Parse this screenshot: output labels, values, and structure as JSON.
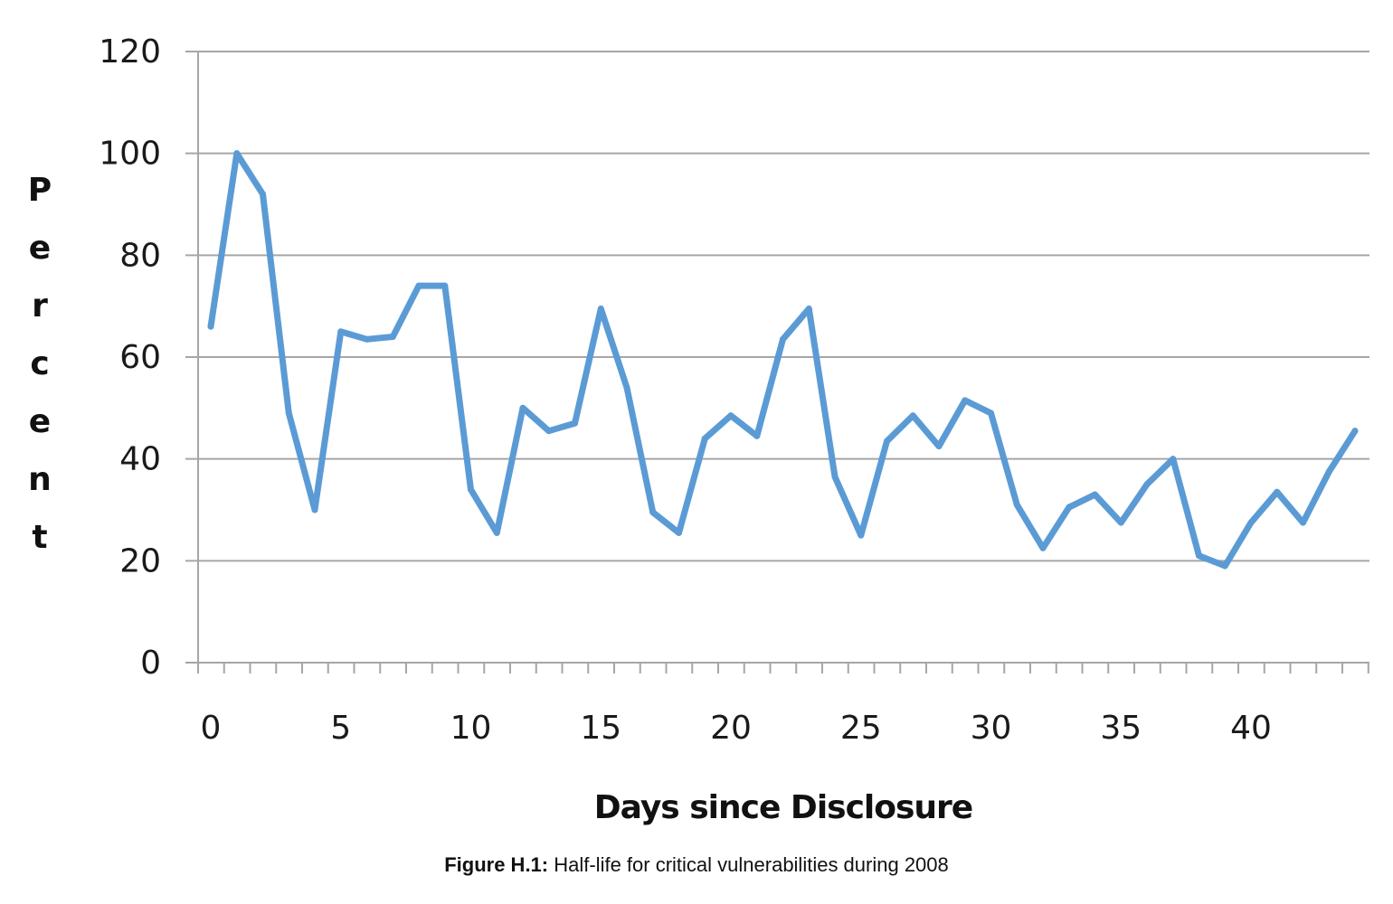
{
  "colors": {
    "line": "#5b9bd5",
    "grid": "#a6a6a6",
    "axis": "#a6a6a6"
  },
  "chart_data": {
    "type": "line",
    "xlabel": "Days since Disclosure",
    "ylabel": "Percent",
    "ylim": [
      0,
      120
    ],
    "yticks": [
      0,
      20,
      40,
      60,
      80,
      100,
      120
    ],
    "xlim": [
      0,
      44
    ],
    "xticklabels": [
      0,
      5,
      10,
      15,
      20,
      25,
      30,
      35,
      40
    ],
    "grid": "horizontal",
    "legend": "none",
    "x": [
      0,
      1,
      2,
      3,
      4,
      5,
      6,
      7,
      8,
      9,
      10,
      11,
      12,
      13,
      14,
      15,
      16,
      17,
      18,
      19,
      20,
      21,
      22,
      23,
      24,
      25,
      26,
      27,
      28,
      29,
      30,
      31,
      32,
      33,
      34,
      35,
      36,
      37,
      38,
      39,
      40,
      41,
      42,
      43,
      44
    ],
    "series": [
      {
        "values": [
          66,
          100,
          92,
          49,
          30,
          65,
          63.5,
          64,
          74,
          74,
          34,
          25.5,
          50,
          45.5,
          47,
          69.5,
          54,
          29.5,
          25.5,
          44,
          48.5,
          44.5,
          63.5,
          69.5,
          36.5,
          25,
          43.5,
          48.5,
          42.5,
          51.5,
          49,
          31,
          22.5,
          30.5,
          33,
          27.5,
          35,
          40,
          21,
          19,
          27.5,
          33.5,
          27.5,
          37.5,
          45.5
        ]
      }
    ]
  },
  "caption": {
    "label": "Figure H.1:",
    "text": " Half-life for critical vulnerabilities during 2008"
  }
}
